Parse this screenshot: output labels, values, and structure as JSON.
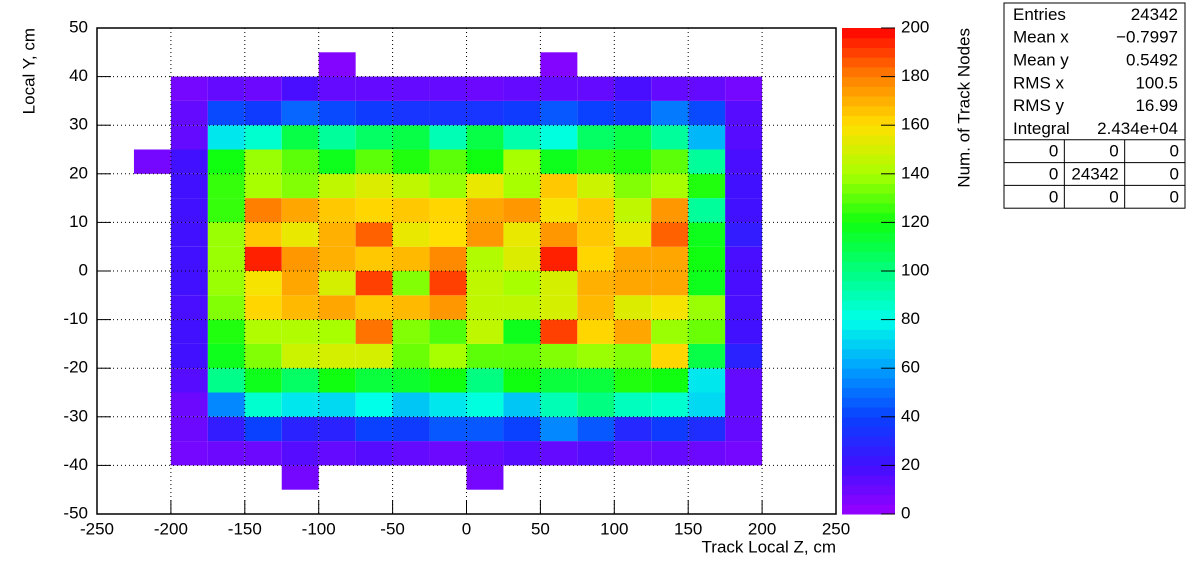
{
  "chart_data": {
    "type": "heatmap",
    "x_label": "Track Local Z, cm",
    "y_label": "Local Y, cm",
    "z_label": "Num. of Track Nodes",
    "xlim": [
      -250,
      250
    ],
    "xticks": [
      -250,
      -200,
      -150,
      -100,
      -50,
      0,
      50,
      100,
      150,
      200,
      250
    ],
    "ylim": [
      -50,
      50
    ],
    "yticks": [
      -50,
      -40,
      -30,
      -20,
      -10,
      0,
      10,
      20,
      30,
      40,
      50
    ],
    "zlim": [
      0,
      200
    ],
    "zticks": [
      0,
      20,
      40,
      60,
      80,
      100,
      120,
      140,
      160,
      180,
      200
    ],
    "grid": true,
    "palette": [
      "#9900ff",
      "#4010ff",
      "#0a40ff",
      "#00a0ff",
      "#00ffe8",
      "#00ff80",
      "#10ff10",
      "#a8ff00",
      "#ffe000",
      "#ff8000",
      "#ff0000"
    ],
    "x_edges": [
      -225,
      -200,
      -175,
      -150,
      -125,
      -100,
      -75,
      -50,
      -25,
      0,
      25,
      50,
      75,
      100,
      125,
      150,
      175,
      200
    ],
    "y_edges": [
      -45,
      -40,
      -35,
      -30,
      -25,
      -20,
      -15,
      -10,
      -5,
      0,
      5,
      10,
      15,
      20,
      25,
      30,
      35,
      40,
      45
    ],
    "z": [
      [
        null,
        null,
        null,
        null,
        8,
        null,
        null,
        null,
        null,
        8,
        null,
        null,
        null,
        null,
        null,
        null,
        null
      ],
      [
        null,
        8,
        10,
        10,
        15,
        12,
        15,
        12,
        10,
        12,
        15,
        12,
        15,
        10,
        12,
        10,
        8
      ],
      [
        null,
        10,
        25,
        40,
        28,
        28,
        40,
        38,
        45,
        45,
        40,
        55,
        45,
        30,
        38,
        32,
        12
      ],
      [
        null,
        10,
        55,
        85,
        75,
        72,
        80,
        68,
        75,
        82,
        68,
        90,
        100,
        88,
        85,
        72,
        12
      ],
      [
        null,
        15,
        98,
        118,
        105,
        120,
        112,
        115,
        120,
        100,
        120,
        112,
        112,
        122,
        120,
        75,
        12
      ],
      [
        null,
        20,
        118,
        135,
        148,
        150,
        150,
        132,
        140,
        130,
        130,
        135,
        138,
        135,
        162,
        110,
        28
      ],
      [
        null,
        20,
        122,
        142,
        142,
        140,
        182,
        135,
        128,
        145,
        118,
        190,
        162,
        172,
        138,
        132,
        20
      ],
      [
        null,
        18,
        135,
        162,
        168,
        172,
        165,
        168,
        175,
        145,
        145,
        150,
        168,
        152,
        158,
        138,
        18
      ],
      [
        null,
        20,
        138,
        158,
        172,
        150,
        190,
        135,
        190,
        145,
        140,
        150,
        170,
        172,
        172,
        118,
        18
      ],
      [
        null,
        20,
        138,
        195,
        175,
        170,
        165,
        168,
        178,
        142,
        152,
        195,
        162,
        172,
        172,
        120,
        18
      ],
      [
        null,
        20,
        138,
        165,
        155,
        170,
        185,
        155,
        160,
        175,
        155,
        175,
        165,
        155,
        185,
        118,
        25
      ],
      [
        null,
        20,
        125,
        180,
        172,
        165,
        162,
        165,
        162,
        172,
        175,
        158,
        165,
        145,
        175,
        95,
        20
      ],
      [
        null,
        20,
        125,
        140,
        135,
        145,
        152,
        145,
        138,
        155,
        140,
        165,
        148,
        135,
        140,
        122,
        20
      ],
      [
        8,
        20,
        120,
        138,
        130,
        118,
        130,
        122,
        130,
        120,
        140,
        118,
        125,
        122,
        130,
        95,
        18
      ],
      [
        null,
        12,
        75,
        85,
        110,
        95,
        105,
        110,
        90,
        110,
        92,
        82,
        105,
        110,
        95,
        65,
        15
      ],
      [
        null,
        12,
        42,
        38,
        48,
        42,
        38,
        35,
        35,
        35,
        38,
        45,
        40,
        38,
        52,
        42,
        15
      ],
      [
        null,
        8,
        12,
        10,
        18,
        12,
        12,
        12,
        12,
        10,
        12,
        12,
        12,
        18,
        12,
        12,
        8
      ],
      [
        null,
        null,
        null,
        null,
        null,
        5,
        null,
        null,
        null,
        null,
        null,
        5,
        null,
        null,
        null,
        null,
        null
      ]
    ],
    "stats": {
      "rows": [
        [
          "Entries",
          "24342"
        ],
        [
          "Mean x",
          "−0.7997"
        ],
        [
          "Mean y",
          "0.5492"
        ],
        [
          "RMS x",
          "100.5"
        ],
        [
          "RMS y",
          "16.99"
        ],
        [
          "Integral",
          "2.434e+04"
        ]
      ],
      "grid": [
        [
          "0",
          "0",
          "0"
        ],
        [
          "0",
          "24342",
          "0"
        ],
        [
          "0",
          "0",
          "0"
        ]
      ]
    }
  }
}
